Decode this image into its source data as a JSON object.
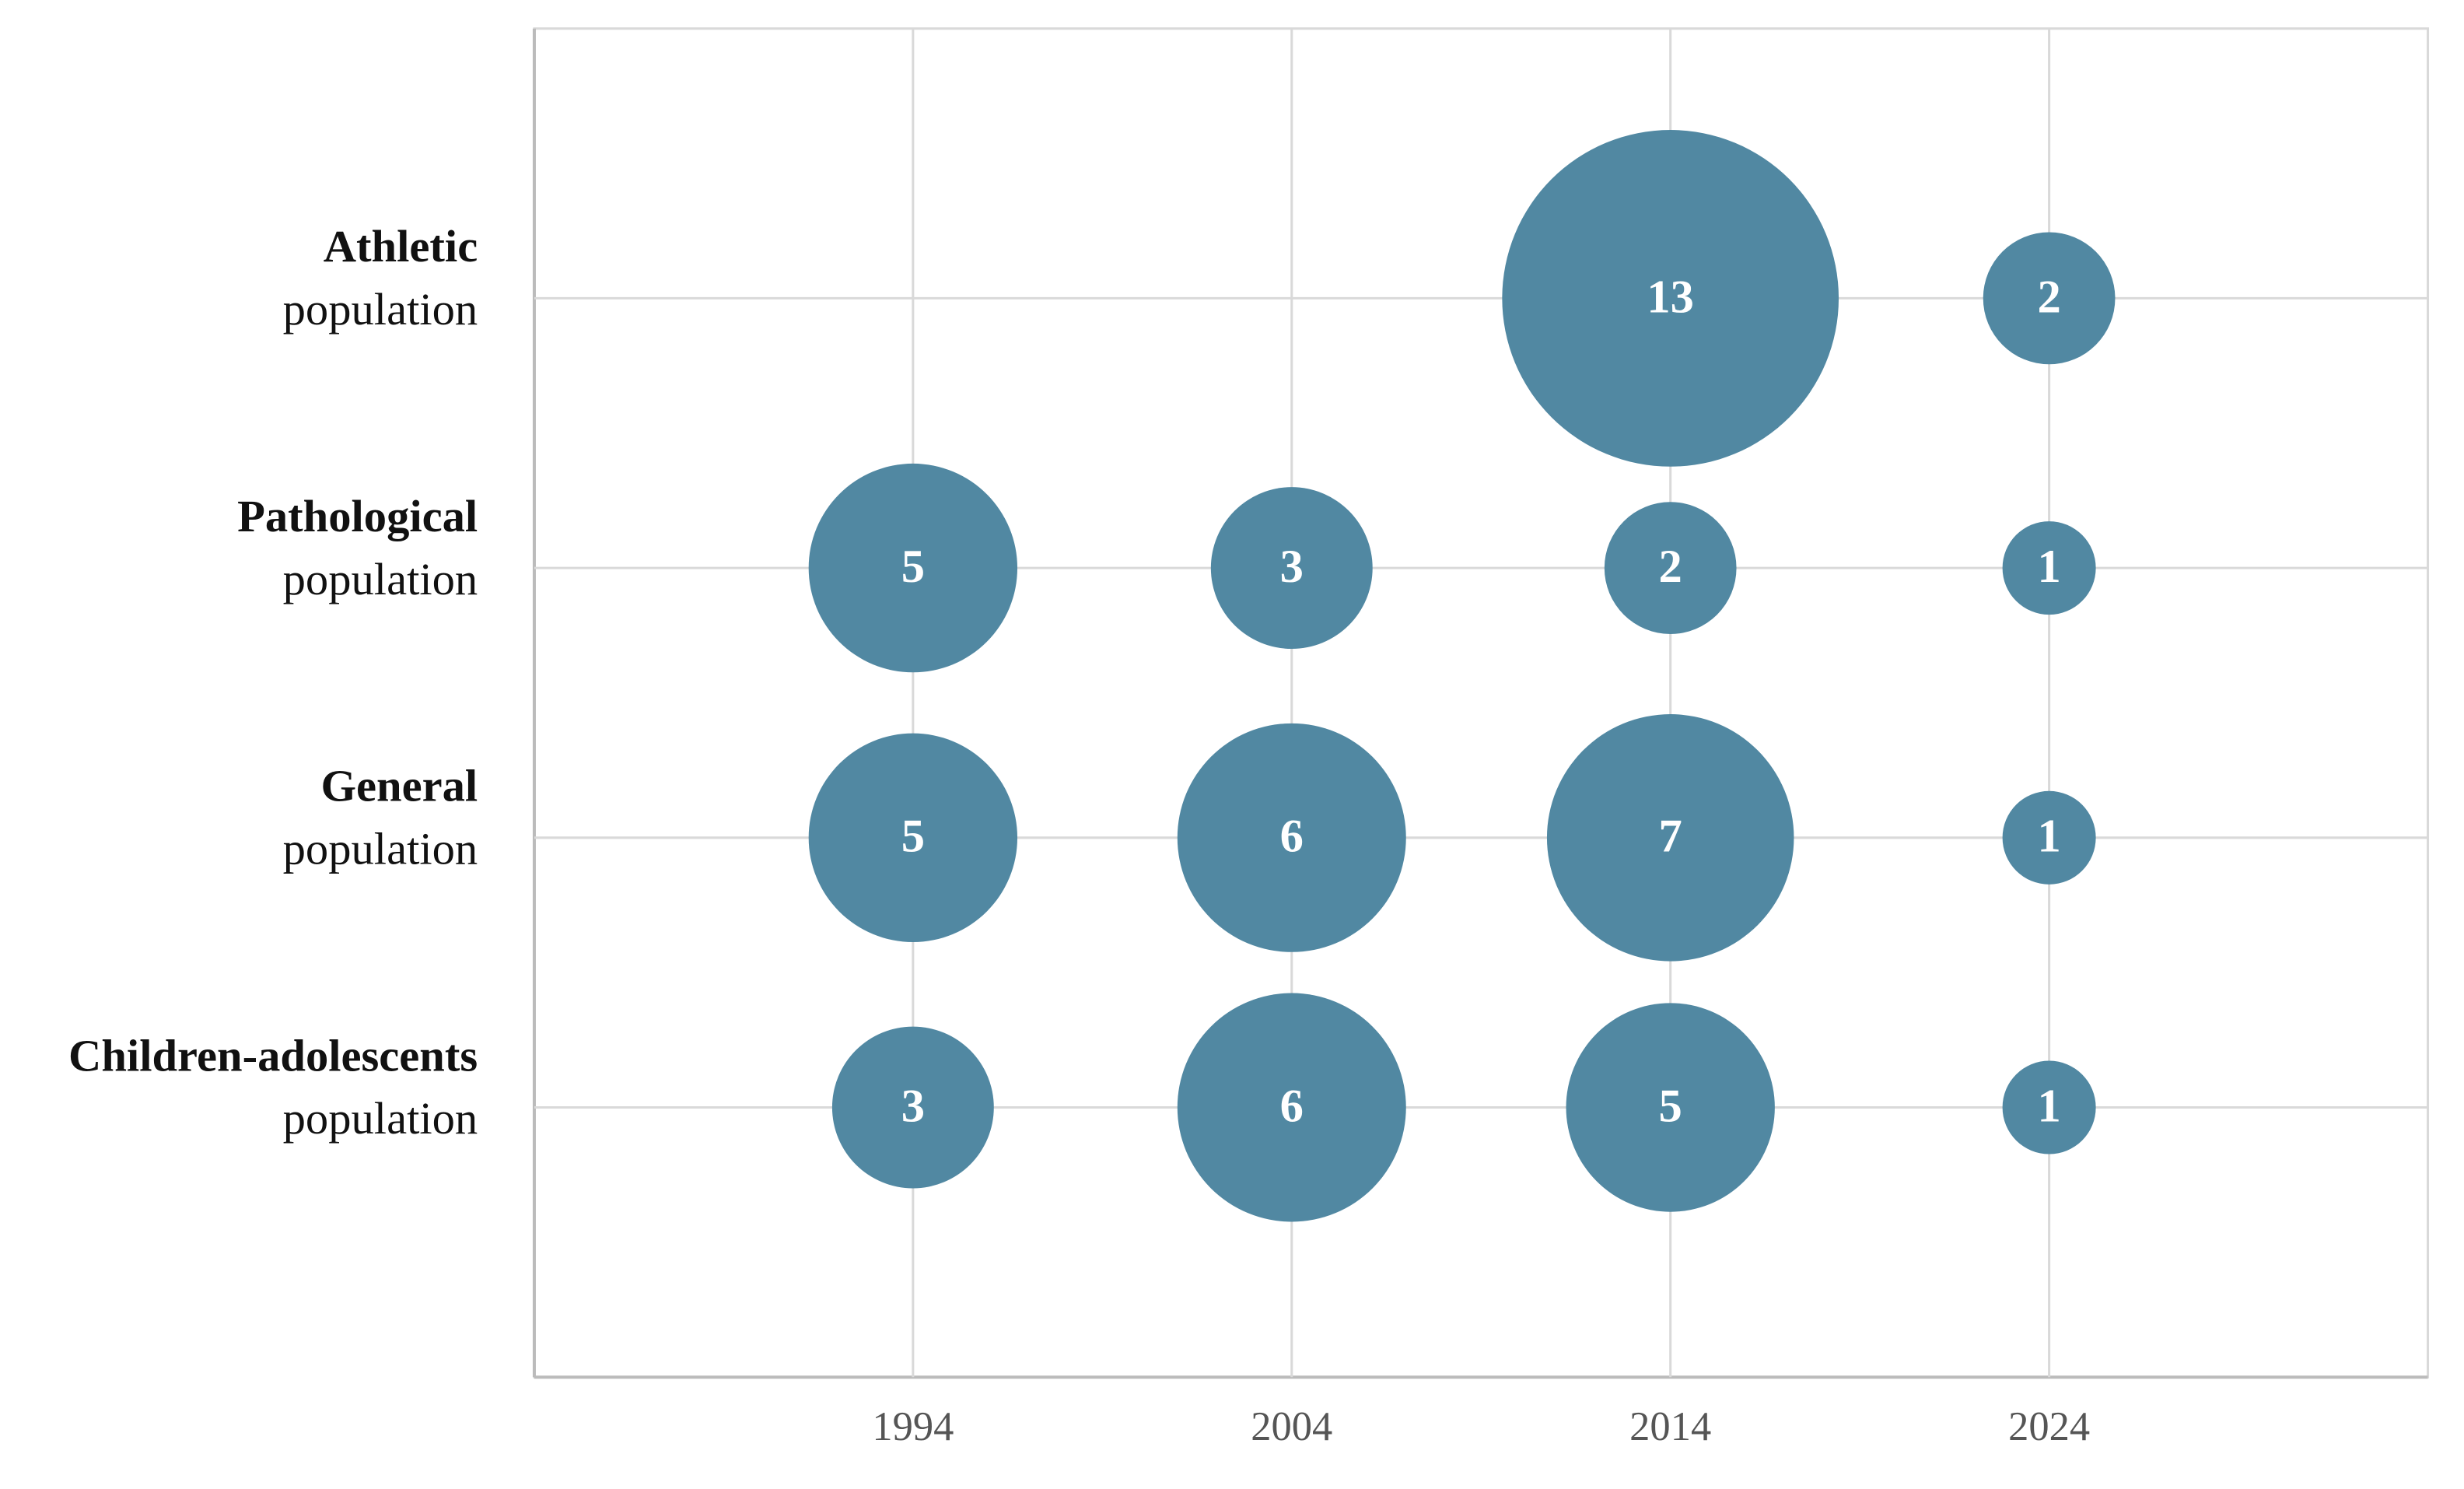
{
  "chart_data": {
    "type": "bubble",
    "x": [
      1994,
      2004,
      2014,
      2024
    ],
    "xlim": [
      1984,
      2034
    ],
    "xticks": [
      1994,
      2004,
      2014,
      2024
    ],
    "categories": [
      [
        "Athletic",
        "population"
      ],
      [
        "Pathological",
        "population"
      ],
      [
        "General",
        "population"
      ],
      [
        "Children-adolescents",
        "population"
      ]
    ],
    "values": [
      [
        null,
        null,
        13,
        2
      ],
      [
        5,
        3,
        2,
        1
      ],
      [
        5,
        6,
        7,
        1
      ],
      [
        3,
        6,
        5,
        1
      ]
    ],
    "color": "#4e86a0",
    "grid": true
  }
}
